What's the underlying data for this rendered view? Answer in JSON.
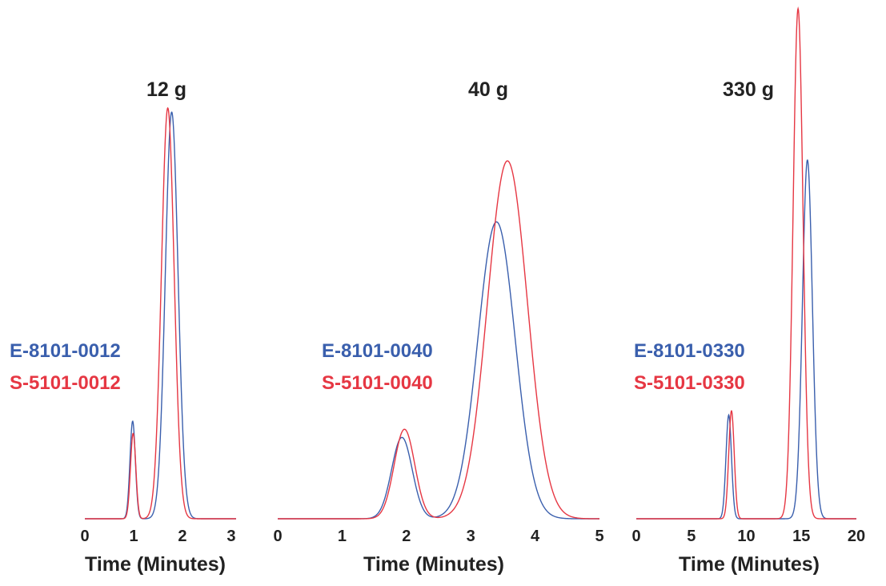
{
  "chart_data": [
    {
      "type": "line",
      "title": "12 g",
      "xlabel": "Time (Minutes)",
      "ylabel": "",
      "xlim": [
        0,
        3.1
      ],
      "ylim": [
        0,
        1.0
      ],
      "xticks": [
        "0",
        "1",
        "2",
        "3"
      ],
      "legend": [
        "E-8101-0012",
        "S-5101-0012"
      ],
      "series": [
        {
          "name": "E-8101-0012",
          "color": "#3a5fad",
          "peaks": [
            {
              "time": 0.98,
              "height": 0.24,
              "width": 0.055
            },
            {
              "time": 1.78,
              "height": 1.0,
              "width": 0.13
            }
          ]
        },
        {
          "name": "S-5101-0012",
          "color": "#e63743",
          "peaks": [
            {
              "time": 0.99,
              "height": 0.21,
              "width": 0.055
            },
            {
              "time": 1.7,
              "height": 1.01,
              "width": 0.13
            }
          ]
        }
      ]
    },
    {
      "type": "line",
      "title": "40 g",
      "xlabel": "Time (Minutes)",
      "ylabel": "",
      "xlim": [
        0,
        5.0
      ],
      "ylim": [
        0,
        1.0
      ],
      "xticks": [
        "0",
        "1",
        "2",
        "3",
        "4",
        "5"
      ],
      "legend": [
        "E-8101-0040",
        "S-5101-0040"
      ],
      "series": [
        {
          "name": "E-8101-0040",
          "color": "#3a5fad",
          "peaks": [
            {
              "time": 1.93,
              "height": 0.2,
              "width": 0.16
            },
            {
              "time": 3.4,
              "height": 0.73,
              "width": 0.29
            }
          ]
        },
        {
          "name": "S-5101-0040",
          "color": "#e63743",
          "peaks": [
            {
              "time": 1.97,
              "height": 0.22,
              "width": 0.16
            },
            {
              "time": 3.57,
              "height": 0.88,
              "width": 0.31
            }
          ]
        }
      ]
    },
    {
      "type": "line",
      "title": "330 g",
      "xlabel": "Time (Minutes)",
      "ylabel": "",
      "xlim": [
        0,
        20.0
      ],
      "ylim": [
        0,
        1.0
      ],
      "xticks": [
        "0",
        "5",
        "10",
        "15",
        "20"
      ],
      "legend": [
        "E-8101-0330",
        "S-5101-0330"
      ],
      "series": [
        {
          "name": "E-8101-0330",
          "color": "#3a5fad",
          "peaks": [
            {
              "time": 8.4,
              "height": 0.24,
              "width": 0.25
            },
            {
              "time": 15.55,
              "height": 0.83,
              "width": 0.45
            }
          ]
        },
        {
          "name": "S-5101-0330",
          "color": "#e63743",
          "peaks": [
            {
              "time": 8.65,
              "height": 0.25,
              "width": 0.25
            },
            {
              "time": 14.7,
              "height": 1.18,
              "width": 0.45
            }
          ]
        }
      ]
    }
  ]
}
